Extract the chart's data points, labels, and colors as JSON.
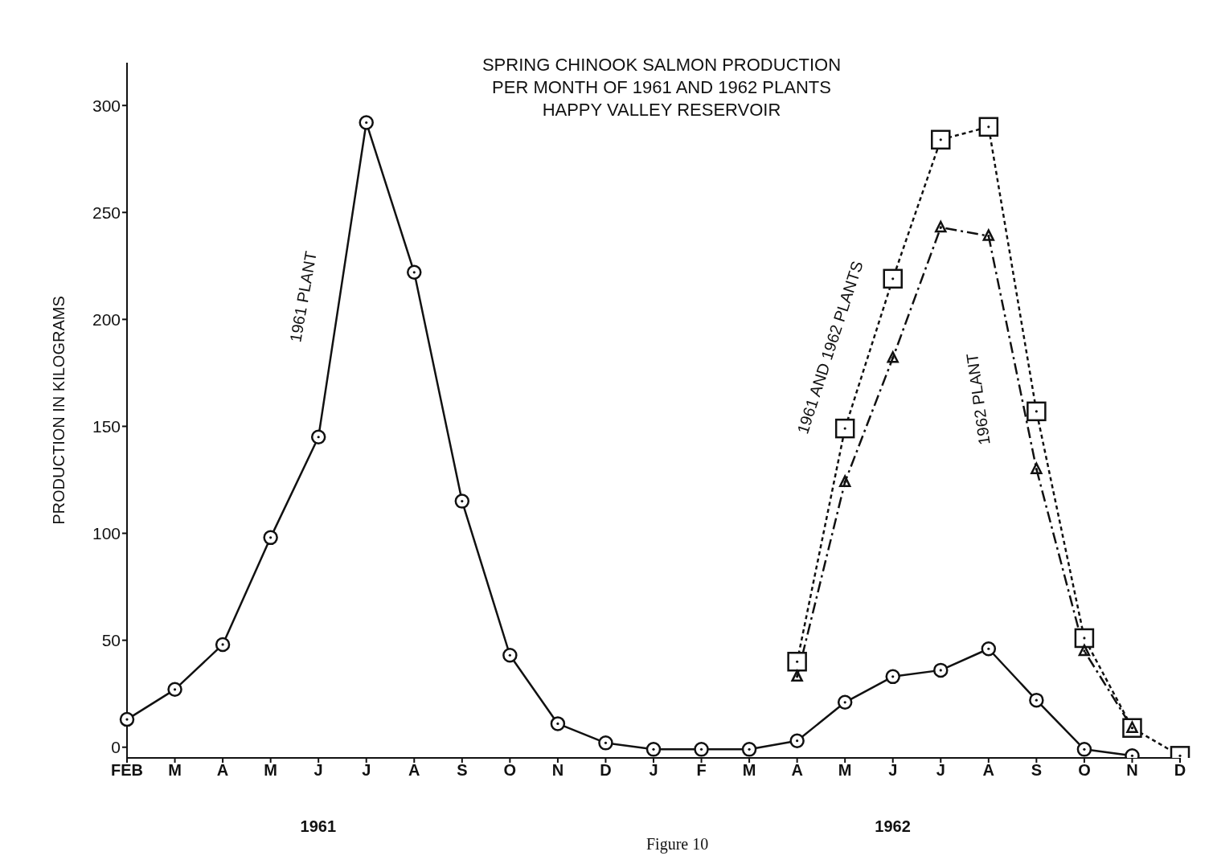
{
  "chart_data": {
    "type": "line",
    "title": "SPRING CHINOOK SALMON PRODUCTION\nPER MONTH OF 1961 AND 1962 PLANTS\nHAPPY VALLEY RESERVOIR",
    "ylabel": "PRODUCTION IN KILOGRAMS",
    "categories": [
      "FEB",
      "M",
      "A",
      "M",
      "J",
      "J",
      "A",
      "S",
      "O",
      "N",
      "D",
      "J",
      "F",
      "M",
      "A",
      "M",
      "J",
      "J",
      "A",
      "S",
      "O",
      "N",
      "D"
    ],
    "series": [
      {
        "name": "1961 PLANT",
        "color": "#111111",
        "marker": "circle",
        "line_style": "solid",
        "values": [
          13,
          27,
          48,
          98,
          145,
          292,
          222,
          115,
          43,
          11,
          2,
          -1,
          -1,
          -1,
          3,
          21,
          33,
          36,
          46,
          22,
          -1,
          -4,
          null
        ]
      },
      {
        "name": "1961 AND 1962 PLANTS",
        "color": "#111111",
        "marker": "square",
        "line_style": "dotted",
        "values": [
          null,
          null,
          null,
          null,
          null,
          null,
          null,
          null,
          null,
          null,
          null,
          null,
          null,
          null,
          40,
          149,
          219,
          284,
          290,
          157,
          51,
          9,
          -4
        ]
      },
      {
        "name": "1962 PLANT",
        "color": "#111111",
        "marker": "triangle",
        "line_style": "dashed",
        "values": [
          null,
          null,
          null,
          null,
          null,
          null,
          null,
          null,
          null,
          null,
          null,
          null,
          null,
          null,
          33,
          124,
          182,
          243,
          239,
          130,
          45,
          9,
          null
        ]
      }
    ],
    "ylim": [
      -5,
      320
    ],
    "yticks": [
      0,
      50,
      100,
      150,
      200,
      250,
      300
    ],
    "grid": false,
    "legend": false,
    "annotations": [
      "1961",
      "1962",
      "Figure 10"
    ]
  }
}
